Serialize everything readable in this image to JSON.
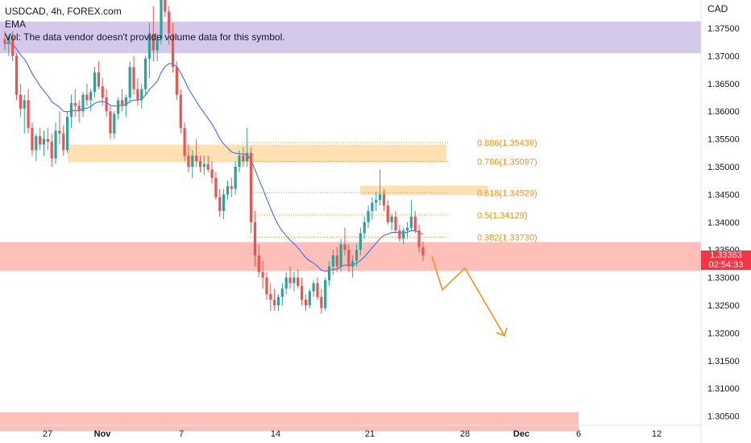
{
  "header": {
    "symbol_line": "USDCAD, 4h, FOREX.com",
    "indicator": "EMA",
    "volume_note": "Vol: The data vendor doesn't provide volume data for this symbol."
  },
  "axis": {
    "currency": "CAD",
    "price_ticks": [
      "1.37500",
      "1.37000",
      "1.36500",
      "1.36000",
      "1.35500",
      "1.35000",
      "1.34500",
      "1.34000",
      "1.33500",
      "1.33000",
      "1.32500",
      "1.32000",
      "1.31500",
      "1.31000",
      "1.30500"
    ],
    "time_ticks": [
      "27",
      "Nov",
      "7",
      "14",
      "21",
      "28",
      "Dec",
      "6",
      "12"
    ]
  },
  "last_price": {
    "price": "1.33383",
    "countdown": "02:54:33"
  },
  "colors": {
    "up": "#26a69a",
    "down": "#ef5350",
    "ema": "#2962ff",
    "fib": "#f7931a",
    "supply_zone": "#b39ddb",
    "demand_zone": "#ff8a80",
    "fib_zone": "#ffcc80",
    "price_tag": "#f23645"
  },
  "chart_data": {
    "type": "candlestick",
    "title": "USDCAD, 4h, FOREX.com",
    "ylabel": "CAD",
    "ylim": [
      1.3035,
      1.3835
    ],
    "x_ticks": [
      "27",
      "Nov",
      "7",
      "14",
      "21",
      "28",
      "Dec",
      "6",
      "12"
    ],
    "fib_levels": [
      {
        "label": "0.886(1.35436)",
        "ratio": 0.886,
        "price": 1.35436
      },
      {
        "label": "0.786(1.35097)",
        "ratio": 0.786,
        "price": 1.35097
      },
      {
        "label": "0.618(1.34529)",
        "ratio": 0.618,
        "price": 1.34529
      },
      {
        "label": "0.5(1.34129)",
        "ratio": 0.5,
        "price": 1.34129
      },
      {
        "label": "0.382(1.33730)",
        "ratio": 0.382,
        "price": 1.3373
      }
    ],
    "zones": [
      {
        "name": "supply",
        "from": 1.3705,
        "to": 1.3762
      },
      {
        "name": "fib-zone-upper",
        "from": 1.3508,
        "to": 1.354
      },
      {
        "name": "fib-zone-lower",
        "from": 1.3449,
        "to": 1.3466
      },
      {
        "name": "demand",
        "from": 1.3312,
        "to": 1.3364
      },
      {
        "name": "bottom-demand",
        "from": 1.3023,
        "to": 1.3057
      }
    ],
    "projection": [
      1.33383,
      1.3278,
      1.3317,
      1.3195
    ],
    "series": [
      {
        "name": "USDCAD",
        "ohlc": [
          [
            1.373,
            1.3745,
            1.371,
            1.3722
          ],
          [
            1.3722,
            1.374,
            1.37,
            1.3735
          ],
          [
            1.3735,
            1.3745,
            1.369,
            1.37
          ],
          [
            1.37,
            1.3705,
            1.362,
            1.363
          ],
          [
            1.363,
            1.365,
            1.359,
            1.3605
          ],
          [
            1.3605,
            1.363,
            1.356,
            1.362
          ],
          [
            1.362,
            1.364,
            1.356,
            1.357
          ],
          [
            1.357,
            1.358,
            1.352,
            1.353
          ],
          [
            1.353,
            1.356,
            1.351,
            1.3555
          ],
          [
            1.3555,
            1.357,
            1.353,
            1.354
          ],
          [
            1.354,
            1.3565,
            1.352,
            1.355
          ],
          [
            1.355,
            1.357,
            1.353,
            1.3545
          ],
          [
            1.3545,
            1.356,
            1.35,
            1.3515
          ],
          [
            1.3515,
            1.358,
            1.3505,
            1.3565
          ],
          [
            1.3565,
            1.36,
            1.354,
            1.356
          ],
          [
            1.356,
            1.3575,
            1.352,
            1.353
          ],
          [
            1.353,
            1.36,
            1.3525,
            1.359
          ],
          [
            1.359,
            1.363,
            1.357,
            1.3615
          ],
          [
            1.3615,
            1.364,
            1.359,
            1.361
          ],
          [
            1.361,
            1.362,
            1.358,
            1.36
          ],
          [
            1.36,
            1.3635,
            1.359,
            1.363
          ],
          [
            1.363,
            1.365,
            1.361,
            1.362
          ],
          [
            1.362,
            1.364,
            1.36,
            1.3635
          ],
          [
            1.3635,
            1.368,
            1.3625,
            1.367
          ],
          [
            1.367,
            1.369,
            1.364,
            1.3645
          ],
          [
            1.3645,
            1.366,
            1.361,
            1.3625
          ],
          [
            1.3625,
            1.364,
            1.359,
            1.36
          ],
          [
            1.36,
            1.361,
            1.355,
            1.356
          ],
          [
            1.356,
            1.36,
            1.355,
            1.3595
          ],
          [
            1.3595,
            1.3625,
            1.3585,
            1.362
          ],
          [
            1.362,
            1.364,
            1.36,
            1.361
          ],
          [
            1.361,
            1.363,
            1.359,
            1.3625
          ],
          [
            1.3625,
            1.369,
            1.3615,
            1.368
          ],
          [
            1.368,
            1.37,
            1.363,
            1.364
          ],
          [
            1.364,
            1.366,
            1.361,
            1.362
          ],
          [
            1.362,
            1.365,
            1.3605,
            1.364
          ],
          [
            1.364,
            1.37,
            1.363,
            1.3695
          ],
          [
            1.3695,
            1.376,
            1.366,
            1.374
          ],
          [
            1.374,
            1.379,
            1.369,
            1.371
          ],
          [
            1.371,
            1.374,
            1.369,
            1.373
          ],
          [
            1.373,
            1.383,
            1.372,
            1.382
          ],
          [
            1.382,
            1.3835,
            1.377,
            1.378
          ],
          [
            1.378,
            1.379,
            1.372,
            1.374
          ],
          [
            1.374,
            1.376,
            1.367,
            1.368
          ],
          [
            1.368,
            1.369,
            1.362,
            1.363
          ],
          [
            1.363,
            1.364,
            1.356,
            1.357
          ],
          [
            1.357,
            1.358,
            1.351,
            1.352
          ],
          [
            1.352,
            1.354,
            1.349,
            1.35
          ],
          [
            1.35,
            1.353,
            1.348,
            1.352
          ],
          [
            1.352,
            1.355,
            1.35,
            1.351
          ],
          [
            1.351,
            1.352,
            1.349,
            1.35
          ],
          [
            1.35,
            1.352,
            1.3485,
            1.3505
          ],
          [
            1.3505,
            1.352,
            1.349,
            1.3495
          ],
          [
            1.3495,
            1.351,
            1.347,
            1.348
          ],
          [
            1.348,
            1.349,
            1.344,
            1.3445
          ],
          [
            1.3445,
            1.346,
            1.341,
            1.342
          ],
          [
            1.342,
            1.346,
            1.3405,
            1.345
          ],
          [
            1.345,
            1.3475,
            1.344,
            1.3465
          ],
          [
            1.3465,
            1.348,
            1.3445,
            1.346
          ],
          [
            1.346,
            1.351,
            1.345,
            1.35
          ],
          [
            1.35,
            1.353,
            1.349,
            1.352
          ],
          [
            1.352,
            1.3535,
            1.35,
            1.351
          ],
          [
            1.351,
            1.357,
            1.35,
            1.3525
          ],
          [
            1.3525,
            1.3535,
            1.338,
            1.34
          ],
          [
            1.34,
            1.342,
            1.332,
            1.334
          ],
          [
            1.334,
            1.336,
            1.33,
            1.331
          ],
          [
            1.331,
            1.333,
            1.328,
            1.33
          ],
          [
            1.33,
            1.331,
            1.326,
            1.327
          ],
          [
            1.327,
            1.329,
            1.324,
            1.326
          ],
          [
            1.326,
            1.328,
            1.324,
            1.325
          ],
          [
            1.325,
            1.327,
            1.324,
            1.3265
          ],
          [
            1.3265,
            1.329,
            1.325,
            1.328
          ],
          [
            1.328,
            1.331,
            1.327,
            1.33
          ],
          [
            1.33,
            1.332,
            1.328,
            1.329
          ],
          [
            1.329,
            1.331,
            1.3275,
            1.33
          ],
          [
            1.33,
            1.3315,
            1.328,
            1.3285
          ],
          [
            1.3285,
            1.33,
            1.325,
            1.326
          ],
          [
            1.326,
            1.327,
            1.324,
            1.325
          ],
          [
            1.325,
            1.328,
            1.3245,
            1.3275
          ],
          [
            1.3275,
            1.3295,
            1.3265,
            1.329
          ],
          [
            1.329,
            1.33,
            1.326,
            1.3265
          ],
          [
            1.3265,
            1.328,
            1.3235,
            1.3245
          ],
          [
            1.3245,
            1.33,
            1.324,
            1.3295
          ],
          [
            1.3295,
            1.333,
            1.3285,
            1.332
          ],
          [
            1.332,
            1.335,
            1.3305,
            1.334
          ],
          [
            1.334,
            1.3355,
            1.331,
            1.332
          ],
          [
            1.332,
            1.337,
            1.331,
            1.336
          ],
          [
            1.336,
            1.339,
            1.334,
            1.335
          ],
          [
            1.335,
            1.336,
            1.331,
            1.332
          ],
          [
            1.332,
            1.334,
            1.33,
            1.333
          ],
          [
            1.333,
            1.336,
            1.332,
            1.335
          ],
          [
            1.335,
            1.339,
            1.334,
            1.338
          ],
          [
            1.338,
            1.341,
            1.337,
            1.34
          ],
          [
            1.34,
            1.343,
            1.339,
            1.342
          ],
          [
            1.342,
            1.3445,
            1.3405,
            1.3435
          ],
          [
            1.3435,
            1.3455,
            1.342,
            1.344
          ],
          [
            1.344,
            1.3495,
            1.343,
            1.345
          ],
          [
            1.345,
            1.346,
            1.342,
            1.343
          ],
          [
            1.343,
            1.344,
            1.3395,
            1.34
          ],
          [
            1.34,
            1.3415,
            1.3385,
            1.341
          ],
          [
            1.341,
            1.342,
            1.338,
            1.3385
          ],
          [
            1.3385,
            1.3395,
            1.3365,
            1.337
          ],
          [
            1.337,
            1.339,
            1.336,
            1.3385
          ],
          [
            1.3385,
            1.34,
            1.337,
            1.339
          ],
          [
            1.339,
            1.344,
            1.3385,
            1.341
          ],
          [
            1.341,
            1.342,
            1.338,
            1.3385
          ],
          [
            1.3385,
            1.3395,
            1.3345,
            1.3355
          ],
          [
            1.3355,
            1.3365,
            1.333,
            1.334
          ]
        ]
      }
    ]
  }
}
